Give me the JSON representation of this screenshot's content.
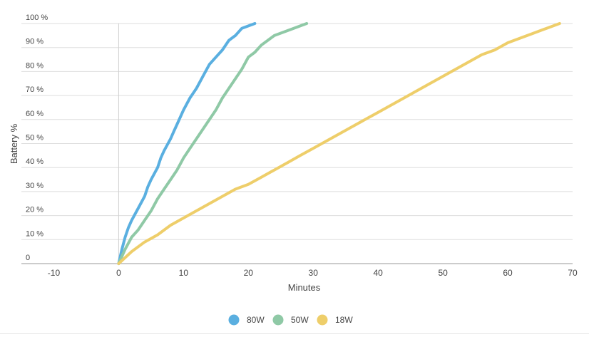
{
  "chart_data": {
    "type": "line",
    "title": "",
    "xlabel": "Minutes",
    "ylabel": "Battery %",
    "xlim": [
      -15,
      70
    ],
    "ylim": [
      0,
      100
    ],
    "x_ticks": [
      -10,
      0,
      10,
      20,
      30,
      40,
      50,
      60,
      70
    ],
    "y_ticks": [
      0,
      10,
      20,
      30,
      40,
      50,
      60,
      70,
      80,
      90,
      100
    ],
    "y_tick_labels": [
      "0",
      "10 %",
      "20 %",
      "30 %",
      "40 %",
      "50 %",
      "60 %",
      "70 %",
      "80 %",
      "90 %",
      "100 %"
    ],
    "grid": "horizontal",
    "legend_position": "bottom-center",
    "series": [
      {
        "name": "80W",
        "color": "#5aafe0",
        "points": [
          [
            0,
            0
          ],
          [
            0.5,
            6
          ],
          [
            1,
            11
          ],
          [
            1.5,
            15
          ],
          [
            2,
            18
          ],
          [
            3,
            23
          ],
          [
            4,
            28
          ],
          [
            4.5,
            32
          ],
          [
            5,
            35
          ],
          [
            6,
            40
          ],
          [
            6.5,
            44
          ],
          [
            7,
            47
          ],
          [
            8,
            52
          ],
          [
            8.5,
            55
          ],
          [
            9,
            58
          ],
          [
            10,
            64
          ],
          [
            11,
            69
          ],
          [
            12,
            73
          ],
          [
            13,
            78
          ],
          [
            14,
            83
          ],
          [
            15,
            86
          ],
          [
            16,
            89
          ],
          [
            17,
            93
          ],
          [
            18,
            95
          ],
          [
            19,
            98
          ],
          [
            20,
            99
          ],
          [
            21,
            100
          ]
        ]
      },
      {
        "name": "50W",
        "color": "#8fc9a6",
        "points": [
          [
            0,
            0
          ],
          [
            1,
            6
          ],
          [
            2,
            11
          ],
          [
            3,
            14
          ],
          [
            4,
            18
          ],
          [
            5,
            22
          ],
          [
            6,
            27
          ],
          [
            7,
            31
          ],
          [
            8,
            35
          ],
          [
            9,
            39
          ],
          [
            10,
            44
          ],
          [
            11,
            48
          ],
          [
            12,
            52
          ],
          [
            13,
            56
          ],
          [
            14,
            60
          ],
          [
            15,
            64
          ],
          [
            16,
            69
          ],
          [
            17,
            73
          ],
          [
            18,
            77
          ],
          [
            19,
            81
          ],
          [
            20,
            86
          ],
          [
            21,
            88
          ],
          [
            22,
            91
          ],
          [
            23,
            93
          ],
          [
            24,
            95
          ],
          [
            25,
            96
          ],
          [
            26,
            97
          ],
          [
            27,
            98
          ],
          [
            28,
            99
          ],
          [
            29,
            100
          ]
        ]
      },
      {
        "name": "18W",
        "color": "#eece6a",
        "points": [
          [
            0,
            0
          ],
          [
            2,
            5
          ],
          [
            4,
            9
          ],
          [
            6,
            12
          ],
          [
            8,
            16
          ],
          [
            10,
            19
          ],
          [
            12,
            22
          ],
          [
            14,
            25
          ],
          [
            16,
            28
          ],
          [
            18,
            31
          ],
          [
            20,
            33
          ],
          [
            22,
            36
          ],
          [
            24,
            39
          ],
          [
            26,
            42
          ],
          [
            28,
            45
          ],
          [
            30,
            48
          ],
          [
            32,
            51
          ],
          [
            34,
            54
          ],
          [
            36,
            57
          ],
          [
            38,
            60
          ],
          [
            40,
            63
          ],
          [
            42,
            66
          ],
          [
            44,
            69
          ],
          [
            46,
            72
          ],
          [
            48,
            75
          ],
          [
            50,
            78
          ],
          [
            52,
            81
          ],
          [
            54,
            84
          ],
          [
            56,
            87
          ],
          [
            58,
            89
          ],
          [
            60,
            92
          ],
          [
            62,
            94
          ],
          [
            64,
            96
          ],
          [
            66,
            98
          ],
          [
            67,
            99
          ],
          [
            68,
            100
          ]
        ]
      }
    ]
  }
}
